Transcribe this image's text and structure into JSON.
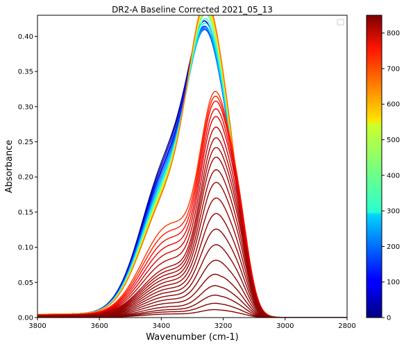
{
  "chart_data": {
    "type": "line",
    "title": "DR2-A Baseline Corrected 2021_05_13",
    "xlabel": "Wavenumber (cm-1)",
    "ylabel": "Absorbance",
    "xlim": [
      3800,
      2800
    ],
    "x_reversed": true,
    "ylim": [
      0.0,
      0.43
    ],
    "x_ticks": [
      "3800",
      "3600",
      "3400",
      "3200",
      "3000",
      "2800"
    ],
    "y_ticks": [
      "0.00",
      "0.05",
      "0.10",
      "0.15",
      "0.20",
      "0.25",
      "0.30",
      "0.35",
      "0.40"
    ],
    "grid": false,
    "legend": "top-right, empty",
    "colorbar": {
      "colormap": "jet",
      "range": [
        0,
        850
      ],
      "ticks": [
        "0",
        "100",
        "200",
        "300",
        "400",
        "500",
        "600",
        "700",
        "800"
      ]
    },
    "series_shape": {
      "description": "Time series of baseline-corrected IR spectra colored by colorbar value (time index 0-850)",
      "early_peak_wavenumber": 3250,
      "late_peak_wavenumber": 3225,
      "early_shoulder_wavenumber": 3380,
      "late_shoulder_wavenumber": 3160
    },
    "series": [
      {
        "color_value": 0,
        "peak": 0.37,
        "shoulder_early": 0.2
      },
      {
        "color_value": 50,
        "peak": 0.372,
        "shoulder_early": 0.195
      },
      {
        "color_value": 100,
        "peak": 0.366,
        "shoulder_early": 0.19
      },
      {
        "color_value": 150,
        "peak": 0.362,
        "shoulder_early": 0.187
      },
      {
        "color_value": 200,
        "peak": 0.366,
        "shoulder_early": 0.182
      },
      {
        "color_value": 250,
        "peak": 0.37,
        "shoulder_early": 0.177
      },
      {
        "color_value": 300,
        "peak": 0.378,
        "shoulder_early": 0.173
      },
      {
        "color_value": 350,
        "peak": 0.386,
        "shoulder_early": 0.17
      },
      {
        "color_value": 400,
        "peak": 0.395,
        "shoulder_early": 0.166
      },
      {
        "color_value": 450,
        "peak": 0.4,
        "shoulder_early": 0.163
      },
      {
        "color_value": 500,
        "peak": 0.405,
        "shoulder_early": 0.16
      },
      {
        "color_value": 550,
        "peak": 0.41,
        "shoulder_early": 0.158
      },
      {
        "color_value": 600,
        "peak": 0.415,
        "shoulder_early": 0.155
      },
      {
        "color_value": 650,
        "peak": 0.42,
        "shoulder_early": 0.153
      },
      {
        "color_value": 700,
        "peak": 0.345,
        "shoulder_early": 0.13
      },
      {
        "color_value": 720,
        "peak": 0.34,
        "shoulder_early": 0.12
      },
      {
        "color_value": 740,
        "peak": 0.335,
        "shoulder_early": 0.11
      },
      {
        "color_value": 760,
        "peak": 0.325,
        "shoulder_early": 0.1
      },
      {
        "color_value": 780,
        "peak": 0.315,
        "shoulder_early": 0.09
      },
      {
        "color_value": 800,
        "peak": 0.3,
        "shoulder_early": 0.08
      },
      {
        "color_value": 810,
        "peak": 0.285,
        "shoulder_early": 0.07
      },
      {
        "color_value": 815,
        "peak": 0.27,
        "shoulder_early": 0.065
      },
      {
        "color_value": 820,
        "peak": 0.255,
        "shoulder_early": 0.06
      },
      {
        "color_value": 825,
        "peak": 0.235,
        "shoulder_early": 0.055
      },
      {
        "color_value": 828,
        "peak": 0.215,
        "shoulder_early": 0.05
      },
      {
        "color_value": 831,
        "peak": 0.19,
        "shoulder_early": 0.045
      },
      {
        "color_value": 834,
        "peak": 0.165,
        "shoulder_early": 0.04
      },
      {
        "color_value": 836,
        "peak": 0.14,
        "shoulder_early": 0.035
      },
      {
        "color_value": 838,
        "peak": 0.115,
        "shoulder_early": 0.03
      },
      {
        "color_value": 840,
        "peak": 0.09,
        "shoulder_early": 0.025
      },
      {
        "color_value": 842,
        "peak": 0.068,
        "shoulder_early": 0.02
      },
      {
        "color_value": 844,
        "peak": 0.05,
        "shoulder_early": 0.015
      },
      {
        "color_value": 846,
        "peak": 0.035,
        "shoulder_early": 0.011
      },
      {
        "color_value": 848,
        "peak": 0.022,
        "shoulder_early": 0.008
      },
      {
        "color_value": 850,
        "peak": 0.012,
        "shoulder_early": 0.005
      }
    ]
  }
}
